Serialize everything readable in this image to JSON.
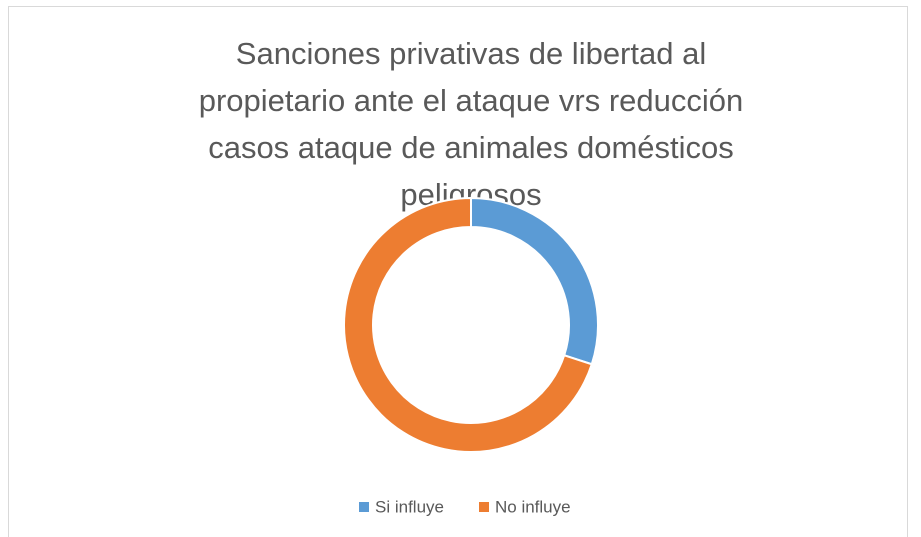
{
  "chart_data": {
    "type": "doughnut",
    "title": "Sanciones privativas de libertad al propietario ante el ataque vrs reducción casos ataque de animales domésticos peligrosos",
    "categories": [
      "Si influye",
      "No influye"
    ],
    "values": [
      30,
      70
    ],
    "colors": [
      "#5b9bd5",
      "#ed7d31"
    ],
    "legend": "bottom"
  }
}
